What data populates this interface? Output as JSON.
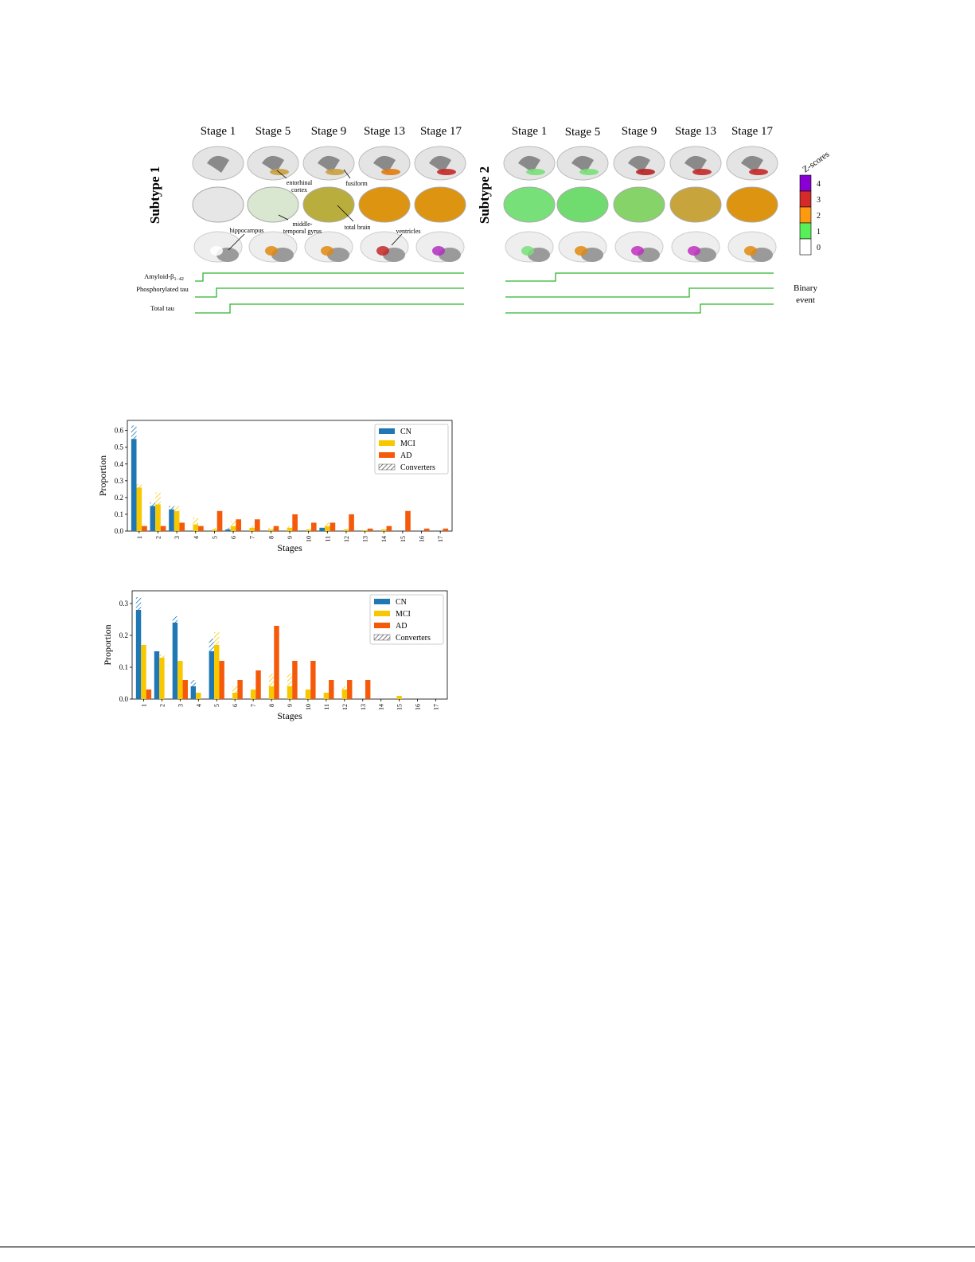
{
  "figure": {
    "subtype1": {
      "title": "Subtype 1",
      "stages": [
        "Stage 1",
        "Stage 5",
        "Stage 9",
        "Stage 13",
        "Stage 17"
      ]
    },
    "subtype2": {
      "title": "Subtype 2",
      "stages": [
        "Stage 1",
        "Stage 5",
        "Stage 9",
        "Stage 13",
        "Stage 17"
      ]
    },
    "annotations": {
      "entorhinal": [
        "entorhinal",
        "cortex"
      ],
      "fusiform": "fusiform",
      "middle_temporal": [
        "middle-",
        "temporal gyrus"
      ],
      "total_brain": "total brain",
      "hippocampus": "hippocampus",
      "ventricles": "ventricles"
    },
    "biomarkers": {
      "amyloid": {
        "label": "Amyloid-β",
        "subscript": "1−42"
      },
      "phospho_tau": "Phosphorylated tau",
      "total_tau": "Total tau"
    },
    "binary_event": [
      "Binary",
      "event"
    ],
    "zscores": {
      "title": "Z-scores",
      "ticks": [
        4,
        3,
        2,
        1,
        0
      ],
      "colors": [
        "#8a00d4",
        "#d42a2a",
        "#ff9a10",
        "#58f058",
        "#ffffff"
      ]
    }
  },
  "chart_data": [
    {
      "type": "bar",
      "xlabel": "Stages",
      "ylabel": "Proportion",
      "categories": [
        "1",
        "2",
        "3",
        "4",
        "5",
        "6",
        "7",
        "8",
        "9",
        "10",
        "11",
        "12",
        "13",
        "14",
        "15",
        "16",
        "17"
      ],
      "series": [
        {
          "name": "CN",
          "color": "#1f77b4",
          "values": [
            0.55,
            0.15,
            0.13,
            0,
            0,
            0.01,
            0,
            0,
            0,
            0,
            0.02,
            0,
            0,
            0,
            0,
            0,
            0
          ],
          "converters": [
            0.08,
            0.02,
            0.02,
            0,
            0,
            0.01,
            0,
            0,
            0,
            0,
            0,
            0,
            0,
            0,
            0,
            0,
            0
          ]
        },
        {
          "name": "MCI",
          "color": "#f7c800",
          "values": [
            0.26,
            0.16,
            0.12,
            0.04,
            0.01,
            0.03,
            0.02,
            0.01,
            0.02,
            0.01,
            0.03,
            0.01,
            0.005,
            0.01,
            0,
            0,
            0
          ],
          "converters": [
            0.02,
            0.07,
            0.03,
            0.04,
            0.01,
            0.03,
            0.01,
            0.01,
            0.01,
            0,
            0.02,
            0,
            0.005,
            0,
            0,
            0,
            0
          ]
        },
        {
          "name": "AD",
          "color": "#f55a0a",
          "values": [
            0.03,
            0.03,
            0.05,
            0.03,
            0.12,
            0.07,
            0.07,
            0.03,
            0.1,
            0.05,
            0.05,
            0.1,
            0.015,
            0.03,
            0.12,
            0.015,
            0.015
          ]
        }
      ],
      "converters_label": "Converters",
      "ylim": [
        0,
        0.66
      ],
      "yticks": [
        {
          "value": 0,
          "label": "0.0"
        },
        0.1,
        0.2,
        0.3,
        0.4,
        0.5,
        0.6
      ],
      "legend": "upper right"
    },
    {
      "type": "bar",
      "xlabel": "Stages",
      "ylabel": "Proportion",
      "categories": [
        "1",
        "2",
        "3",
        "4",
        "5",
        "6",
        "7",
        "8",
        "9",
        "10",
        "11",
        "12",
        "13",
        "14",
        "15",
        "16",
        "17"
      ],
      "series": [
        {
          "name": "CN",
          "color": "#1f77b4",
          "values": [
            0.28,
            0.15,
            0.24,
            0.04,
            0.15,
            0,
            0,
            0,
            0,
            0,
            0,
            0,
            0,
            0,
            0,
            0,
            0
          ],
          "converters": [
            0.04,
            0,
            0.02,
            0.02,
            0.04,
            0,
            0,
            0,
            0,
            0,
            0,
            0,
            0,
            0,
            0,
            0,
            0
          ]
        },
        {
          "name": "MCI",
          "color": "#f7c800",
          "values": [
            0.17,
            0.13,
            0.12,
            0.02,
            0.17,
            0.02,
            0.03,
            0.04,
            0.04,
            0.03,
            0.02,
            0.03,
            0,
            0,
            0.01,
            0,
            0
          ],
          "converters": [
            0,
            0.01,
            0,
            0,
            0.04,
            0.02,
            0,
            0.04,
            0.04,
            0,
            0,
            0.01,
            0,
            0,
            0,
            0,
            0
          ]
        },
        {
          "name": "AD",
          "color": "#f55a0a",
          "values": [
            0.03,
            0,
            0.06,
            0,
            0.12,
            0.06,
            0.09,
            0.23,
            0.12,
            0.12,
            0.06,
            0.06,
            0.06,
            0,
            0,
            0,
            0
          ]
        }
      ],
      "converters_label": "Converters",
      "ylim": [
        0,
        0.34
      ],
      "yticks": [
        {
          "value": 0,
          "label": "0.0"
        },
        0.1,
        0.2,
        0.3
      ],
      "legend": "upper right"
    }
  ]
}
